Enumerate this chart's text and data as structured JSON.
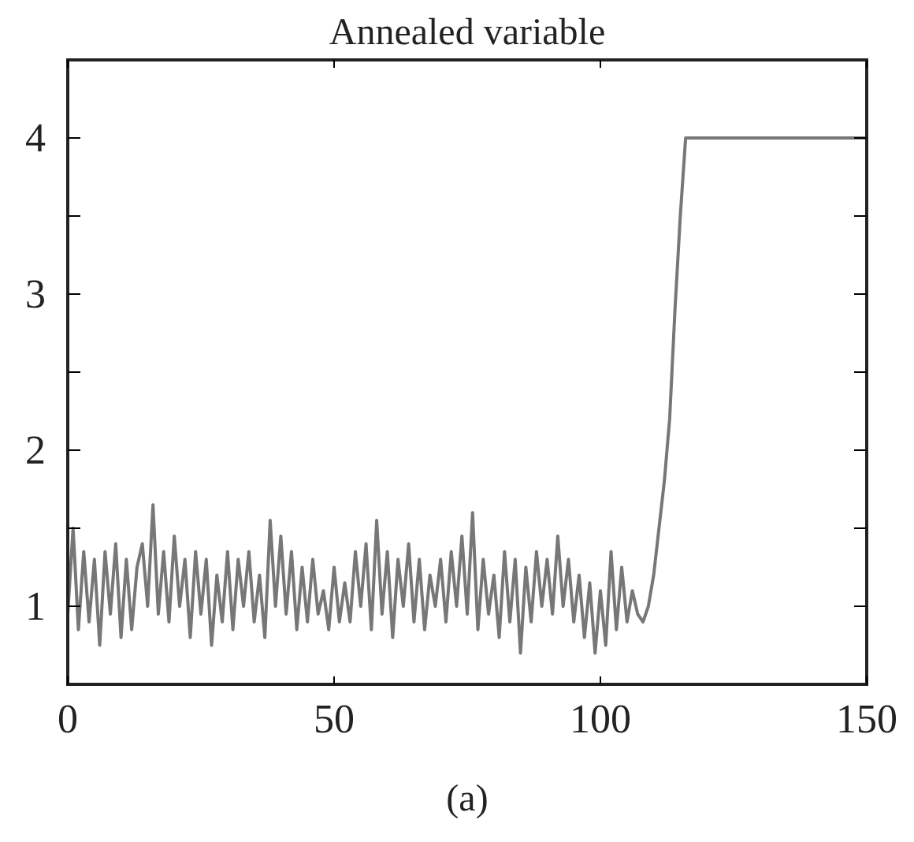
{
  "chart_data": {
    "type": "line",
    "title": "Annealed variable",
    "xlabel": "(a)",
    "xlim": [
      0,
      150
    ],
    "xticks": [
      0,
      50,
      100,
      150
    ],
    "ylim": [
      0.5,
      4.5
    ],
    "yticks": [
      1,
      {
        "value": 1.5,
        "label": null
      },
      2,
      {
        "value": 2.5,
        "label": null
      },
      3,
      {
        "value": 3.5,
        "label": null
      },
      4
    ],
    "grid": false,
    "marker": "none",
    "line_style": "solid",
    "series": [
      {
        "color": "#777777",
        "x": [
          0,
          1,
          2,
          3,
          4,
          5,
          6,
          7,
          8,
          9,
          10,
          11,
          12,
          13,
          14,
          15,
          16,
          17,
          18,
          19,
          20,
          21,
          22,
          23,
          24,
          25,
          26,
          27,
          28,
          29,
          30,
          31,
          32,
          33,
          34,
          35,
          36,
          37,
          38,
          39,
          40,
          41,
          42,
          43,
          44,
          45,
          46,
          47,
          48,
          49,
          50,
          51,
          52,
          53,
          54,
          55,
          56,
          57,
          58,
          59,
          60,
          61,
          62,
          63,
          64,
          65,
          66,
          67,
          68,
          69,
          70,
          71,
          72,
          73,
          74,
          75,
          76,
          77,
          78,
          79,
          80,
          81,
          82,
          83,
          84,
          85,
          86,
          87,
          88,
          89,
          90,
          91,
          92,
          93,
          94,
          95,
          96,
          97,
          98,
          99,
          100,
          101,
          102,
          103,
          104,
          105,
          106,
          107,
          108,
          109,
          110,
          111,
          112,
          113,
          114,
          115,
          116,
          150
        ],
        "values": [
          0.95,
          1.5,
          0.85,
          1.35,
          0.9,
          1.3,
          0.75,
          1.35,
          0.95,
          1.4,
          0.8,
          1.3,
          0.85,
          1.25,
          1.4,
          1.0,
          1.65,
          0.95,
          1.35,
          0.9,
          1.45,
          1.0,
          1.3,
          0.8,
          1.35,
          0.95,
          1.3,
          0.75,
          1.2,
          0.9,
          1.35,
          0.85,
          1.3,
          1.0,
          1.35,
          0.9,
          1.2,
          0.8,
          1.55,
          1.0,
          1.45,
          0.95,
          1.35,
          0.85,
          1.25,
          0.9,
          1.3,
          0.95,
          1.1,
          0.85,
          1.25,
          0.9,
          1.15,
          0.9,
          1.35,
          1.0,
          1.4,
          0.85,
          1.55,
          0.95,
          1.35,
          0.8,
          1.3,
          1.0,
          1.4,
          0.9,
          1.3,
          0.85,
          1.2,
          1.0,
          1.3,
          0.9,
          1.35,
          1.0,
          1.45,
          0.95,
          1.6,
          0.85,
          1.3,
          0.95,
          1.2,
          0.8,
          1.35,
          0.9,
          1.3,
          0.7,
          1.25,
          0.9,
          1.35,
          1.0,
          1.3,
          0.95,
          1.45,
          1.0,
          1.3,
          0.9,
          1.2,
          0.8,
          1.15,
          0.7,
          1.1,
          0.75,
          1.35,
          0.85,
          1.25,
          0.9,
          1.1,
          0.95,
          0.9,
          1.0,
          1.2,
          1.5,
          1.8,
          2.2,
          2.9,
          3.5,
          4.0,
          4.0
        ]
      }
    ]
  }
}
